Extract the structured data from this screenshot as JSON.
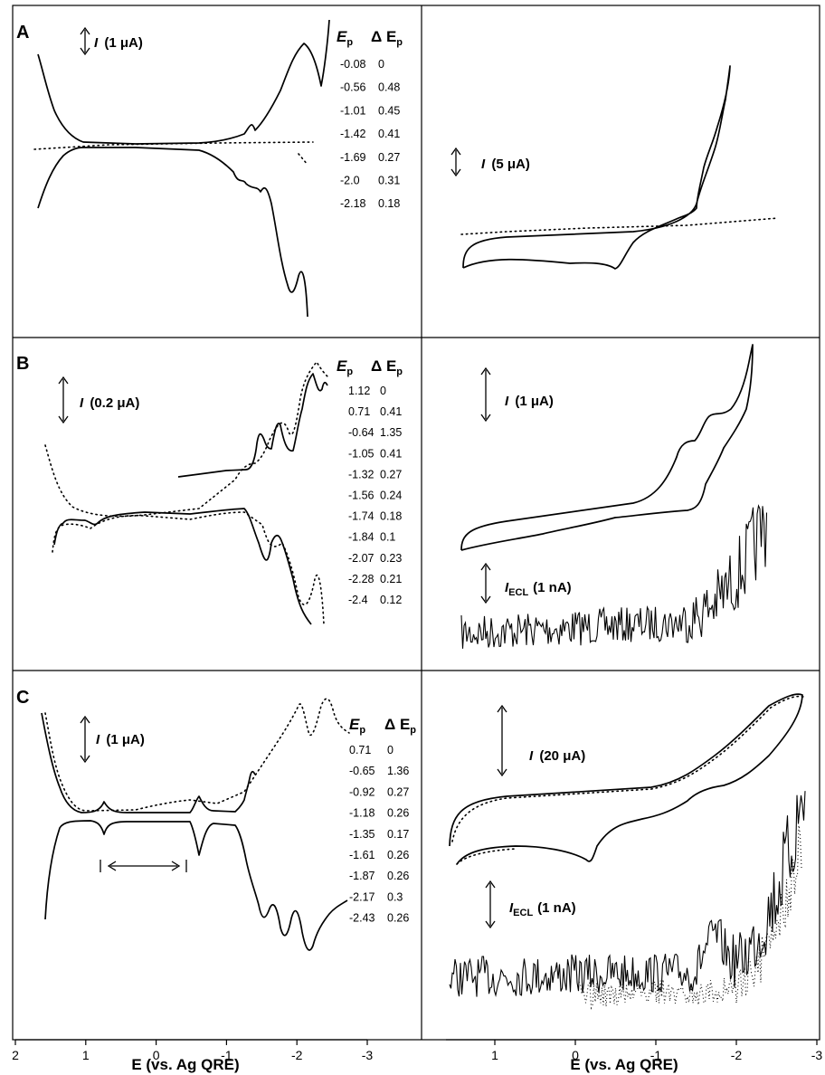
{
  "chart_data": {
    "type": "line",
    "x_axis_label": "E (vs. Ag  QRE)",
    "x_axis_label_right": "E (vs. Ag QRE)",
    "x_ticks_left": [
      "2",
      "1",
      "0",
      "-1",
      "-2",
      "-3"
    ],
    "x_ticks_right": [
      "1",
      "0",
      "-1",
      "-2",
      "-3"
    ],
    "panels": [
      {
        "label": "A",
        "left_current_scale": "(1 μA)",
        "right_current_scale": "(5 μA)",
        "ep_header": "E",
        "ep_sub": "p",
        "dep_header": "Δ E",
        "peaks": [
          {
            "ep": "-0.08",
            "dep": "0"
          },
          {
            "ep": "-0.56",
            "dep": "0.48"
          },
          {
            "ep": "-1.01",
            "dep": "0.45"
          },
          {
            "ep": "-1.42",
            "dep": "0.41"
          },
          {
            "ep": "-1.69",
            "dep": "0.27"
          },
          {
            "ep": "-2.0",
            "dep": "0.31"
          },
          {
            "ep": "-2.18",
            "dep": "0.18"
          }
        ]
      },
      {
        "label": "B",
        "left_current_scale": "(0.2 μA)",
        "right_current_scale": "(1 μA)",
        "ecl_scale": "(1 nA)",
        "ep_header": "E",
        "ep_sub": "p",
        "dep_header": "Δ E",
        "peaks": [
          {
            "ep": "1.12",
            "dep": "0"
          },
          {
            "ep": "0.71",
            "dep": "0.41"
          },
          {
            "ep": "-0.64",
            "dep": "1.35"
          },
          {
            "ep": "-1.05",
            "dep": "0.41"
          },
          {
            "ep": "-1.32",
            "dep": "0.27"
          },
          {
            "ep": "-1.56",
            "dep": "0.24"
          },
          {
            "ep": "-1.74",
            "dep": "0.18"
          },
          {
            "ep": "-1.84",
            "dep": "0.1"
          },
          {
            "ep": "-2.07",
            "dep": "0.23"
          },
          {
            "ep": "-2.28",
            "dep": "0.21"
          },
          {
            "ep": "-2.4",
            "dep": "0.12"
          }
        ]
      },
      {
        "label": "C",
        "left_current_scale": "(1 μA)",
        "right_current_scale": "(20 μA)",
        "ecl_scale": "(1 nA)",
        "ep_header": "E",
        "ep_sub": "p",
        "dep_header": "Δ E",
        "peaks": [
          {
            "ep": "0.71",
            "dep": "0"
          },
          {
            "ep": "-0.65",
            "dep": "1.36"
          },
          {
            "ep": "-0.92",
            "dep": "0.27"
          },
          {
            "ep": "-1.18",
            "dep": "0.26"
          },
          {
            "ep": "-1.35",
            "dep": "0.17"
          },
          {
            "ep": "-1.61",
            "dep": "0.26"
          },
          {
            "ep": "-1.87",
            "dep": "0.26"
          },
          {
            "ep": "-2.17",
            "dep": "0.3"
          },
          {
            "ep": "-2.43",
            "dep": "0.26"
          }
        ]
      }
    ],
    "current_symbol": "I",
    "ecl_symbol": "I",
    "ecl_sub": "ECL"
  }
}
